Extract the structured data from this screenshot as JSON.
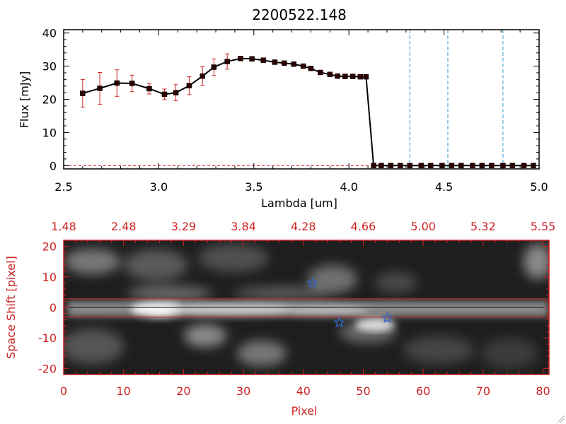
{
  "colors": {
    "axis_top": "#000000",
    "axis_bottom": "#cc2222",
    "marker": "#2a0000",
    "errorbar": "#cc2222",
    "dashed_vlines": "#3399cc",
    "stars": "#3366cc",
    "slit_lines": "#cc2222"
  },
  "chart_data": [
    {
      "type": "line",
      "title": "2200522.148",
      "xlabel": "Lambda [um]",
      "ylabel": "Flux [mJy]",
      "xlim": [
        2.5,
        5.0
      ],
      "ylim": [
        -1,
        41
      ],
      "xticks": [
        "2.5",
        "3.0",
        "3.5",
        "4.0",
        "4.5",
        "5.0"
      ],
      "xtick_values": [
        2.5,
        3.0,
        3.5,
        4.0,
        4.5,
        5.0
      ],
      "yticks": [
        "0",
        "10",
        "20",
        "30",
        "40"
      ],
      "ytick_values": [
        0,
        10,
        20,
        30,
        40
      ],
      "x": [
        2.6,
        2.69,
        2.78,
        2.86,
        2.95,
        3.03,
        3.09,
        3.16,
        3.23,
        3.29,
        3.36,
        3.43,
        3.49,
        3.55,
        3.61,
        3.66,
        3.71,
        3.76,
        3.8,
        3.85,
        3.9,
        3.94,
        3.98,
        4.02,
        4.06,
        4.09,
        4.13,
        4.17,
        4.22,
        4.27,
        4.32,
        4.38,
        4.43,
        4.49,
        4.54,
        4.59,
        4.65,
        4.7,
        4.75,
        4.81,
        4.86,
        4.92,
        4.97
      ],
      "y": [
        21.8,
        23.3,
        24.9,
        24.8,
        23.2,
        21.5,
        22.0,
        24.1,
        27.0,
        29.7,
        31.4,
        32.3,
        32.2,
        31.8,
        31.2,
        30.9,
        30.6,
        30.0,
        29.3,
        28.1,
        27.5,
        27.0,
        26.9,
        26.9,
        26.8,
        26.8,
        0,
        0,
        0,
        0,
        0,
        0,
        0,
        0,
        0,
        0,
        0,
        0,
        0,
        0,
        0,
        0,
        0
      ],
      "yerr": [
        4.2,
        4.8,
        4.0,
        2.5,
        1.6,
        1.6,
        2.4,
        2.7,
        2.8,
        2.5,
        2.3,
        0,
        0,
        0,
        0,
        0,
        0,
        0,
        0,
        0,
        0,
        0,
        0,
        0,
        0,
        0,
        0,
        0,
        0,
        0,
        0,
        0,
        0,
        0,
        0,
        0,
        0,
        0,
        0,
        0,
        0,
        0,
        0
      ],
      "vlines_dashed": [
        4.32,
        4.52,
        4.81
      ],
      "hline_dashed": 0,
      "grid": false,
      "legend": "none"
    },
    {
      "type": "heatmap",
      "xlabel": "Pixel",
      "ylabel": "Space Shift [pixel]",
      "xlim": [
        0,
        81
      ],
      "ylim": [
        -22,
        22
      ],
      "xticks": [
        "0",
        "10",
        "20",
        "30",
        "40",
        "50",
        "60",
        "70",
        "80"
      ],
      "xtick_values": [
        0,
        10,
        20,
        30,
        40,
        50,
        60,
        70,
        80
      ],
      "yticks": [
        "-20",
        "-10",
        "0",
        "10",
        "20"
      ],
      "ytick_values": [
        -20,
        -10,
        0,
        10,
        20
      ],
      "top_axis_ticks": [
        "1.48",
        "2.48",
        "3.29",
        "3.84",
        "4.28",
        "4.66",
        "5.00",
        "5.32",
        "5.55"
      ],
      "slit_lines": [
        2.8,
        -3.2
      ],
      "center_line": 0,
      "stars": [
        {
          "x": 41.5,
          "y": 8
        },
        {
          "x": 46,
          "y": -5
        },
        {
          "x": 54,
          "y": -3.5
        }
      ],
      "grid": false,
      "legend": "none"
    }
  ]
}
